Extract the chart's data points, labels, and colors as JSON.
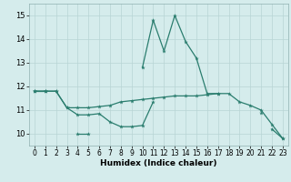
{
  "x": [
    0,
    1,
    2,
    3,
    4,
    5,
    6,
    7,
    8,
    9,
    10,
    11,
    12,
    13,
    14,
    15,
    16,
    17,
    18,
    19,
    20,
    21,
    22,
    23
  ],
  "series1": [
    11.8,
    11.8,
    11.8,
    11.1,
    10.8,
    10.8,
    10.85,
    10.5,
    10.3,
    10.3,
    10.35,
    11.35,
    null,
    null,
    null,
    null,
    null,
    null,
    null,
    null,
    null,
    null,
    10.2,
    9.8
  ],
  "series2": [
    11.8,
    11.8,
    null,
    null,
    10.0,
    10.0,
    null,
    null,
    null,
    null,
    12.8,
    14.8,
    13.5,
    15.0,
    13.9,
    13.2,
    11.7,
    11.7,
    null,
    null,
    null,
    10.9,
    null,
    null
  ],
  "series3": [
    11.8,
    11.8,
    11.8,
    11.1,
    11.1,
    11.1,
    11.15,
    11.2,
    11.35,
    11.4,
    11.45,
    11.5,
    11.55,
    11.6,
    11.6,
    11.6,
    11.65,
    11.7,
    11.7,
    11.35,
    11.2,
    11.0,
    10.4,
    9.8
  ],
  "line_color": "#2a7d6e",
  "bg_color": "#d5ecec",
  "grid_color": "#b8d4d4",
  "xlabel": "Humidex (Indice chaleur)",
  "ylim": [
    9.5,
    15.5
  ],
  "xlim": [
    -0.5,
    23.5
  ],
  "yticks": [
    10,
    11,
    12,
    13,
    14,
    15
  ],
  "xticks": [
    0,
    1,
    2,
    3,
    4,
    5,
    6,
    7,
    8,
    9,
    10,
    11,
    12,
    13,
    14,
    15,
    16,
    17,
    18,
    19,
    20,
    21,
    22,
    23
  ]
}
